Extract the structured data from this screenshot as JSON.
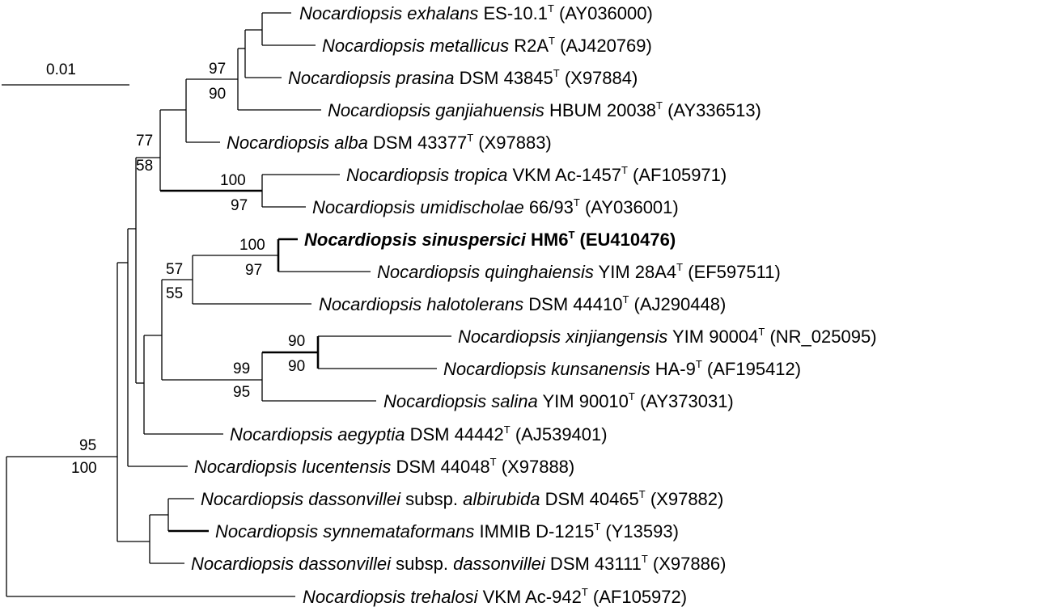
{
  "scale_bar": {
    "label": "0.01"
  },
  "taxa": [
    {
      "genus": "Nocardiopsis",
      "epithet": "exhalans",
      "strain": " ES-10.1",
      "sup": "T",
      "accession": " (AY036000)"
    },
    {
      "genus": "Nocardiopsis",
      "epithet": "metallicus",
      "strain": " R2A",
      "sup": "T",
      "accession": " (AJ420769)"
    },
    {
      "genus": "Nocardiopsis",
      "epithet": "prasina",
      "strain": " DSM 43845",
      "sup": "T",
      "accession": " (X97884)"
    },
    {
      "genus": "Nocardiopsis",
      "epithet": "ganjiahuensis",
      "strain": " HBUM 20038",
      "sup": "T",
      "accession": " (AY336513)"
    },
    {
      "genus": "Nocardiopsis",
      "epithet": "alba",
      "strain": " DSM 43377",
      "sup": "T",
      "accession": " (X97883)"
    },
    {
      "genus": "Nocardiopsis",
      "epithet": "tropica",
      "strain": " VKM Ac-1457",
      "sup": "T",
      "accession": " (AF105971)"
    },
    {
      "genus": "Nocardiopsis",
      "epithet": "umidischolae",
      "strain": " 66/93",
      "sup": "T",
      "accession": " (AY036001)"
    },
    {
      "genus": "Nocardiopsis",
      "epithet": "sinuspersici",
      "strain": " HM6",
      "sup": "T",
      "accession": " (EU410476)",
      "bold": true
    },
    {
      "genus": "Nocardiopsis",
      "epithet": "quinghaiensis",
      "strain": " YIM 28A4",
      "sup": "T",
      "accession": " (EF597511)"
    },
    {
      "genus": "Nocardiopsis",
      "epithet": "halotolerans",
      "strain": " DSM 44410",
      "sup": "T",
      "accession": " (AJ290448)"
    },
    {
      "genus": "Nocardiopsis",
      "epithet": "xinjiangensis",
      "strain": " YIM 90004",
      "sup": "T",
      "accession": " (NR_025095)"
    },
    {
      "genus": "Nocardiopsis",
      "epithet": "kunsanensis",
      "strain": " HA-9",
      "sup": "T",
      "accession": " (AF195412)"
    },
    {
      "genus": "Nocardiopsis",
      "epithet": "salina",
      "strain": " YIM 90010",
      "sup": "T",
      "accession": " (AY373031)"
    },
    {
      "genus": "Nocardiopsis",
      "epithet": "aegyptia",
      "strain": " DSM 44442",
      "sup": "T",
      "accession": " (AJ539401)"
    },
    {
      "genus": "Nocardiopsis",
      "epithet": "lucentensis",
      "strain": " DSM 44048",
      "sup": "T",
      "accession": " (X97888)"
    },
    {
      "genus": "Nocardiopsis",
      "epithet": "dassonvillei",
      "subsp_word": " subsp. ",
      "subsp_epithet": "albirubida",
      "strain": " DSM 40465",
      "sup": "T",
      "accession": " (X97882)"
    },
    {
      "genus": "Nocardiopsis",
      "epithet": "synnemataformans",
      "strain": " IMMIB D-1215",
      "sup": "T",
      "accession": " (Y13593)"
    },
    {
      "genus": "Nocardiopsis",
      "epithet": "dassonvillei",
      "subsp_word": " subsp. ",
      "subsp_epithet": "dassonvillei",
      "strain": " DSM 43111",
      "sup": "T",
      "accession": " (X97886)"
    },
    {
      "genus": "Nocardiopsis",
      "epithet": "trehalosi",
      "strain": " VKM Ac-942",
      "sup": "T",
      "accession": " (AF105972)"
    }
  ],
  "bootstrap": [
    "97",
    "90",
    "77",
    "58",
    "100",
    "97",
    "100",
    "97",
    "57",
    "55",
    "90",
    "90",
    "99",
    "95",
    "95",
    "100"
  ]
}
